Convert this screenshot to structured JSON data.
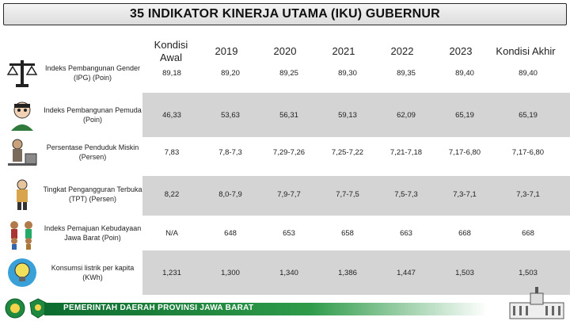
{
  "title": "35 INDIKATOR KINERJA UTAMA (IKU) GUBERNUR",
  "columns": [
    "Kondisi Awal",
    "2019",
    "2020",
    "2021",
    "2022",
    "2023",
    "Kondisi Akhir"
  ],
  "rows": [
    {
      "label": "Indeks Pembangunan Gender (IPG) (Poin)",
      "icon": "justice-scale-icon",
      "values": [
        "89,18",
        "89,20",
        "89,25",
        "89,30",
        "89,35",
        "89,40",
        "89,40"
      ]
    },
    {
      "label": "Indeks Pembangunan Pemuda (Poin)",
      "icon": "youth-person-icon",
      "values": [
        "46,33",
        "53,63",
        "56,31",
        "59,13",
        "62,09",
        "65,19",
        "65,19"
      ]
    },
    {
      "label": "Persentase Penduduk Miskin (Persen)",
      "icon": "poverty-icon",
      "values": [
        "7,83",
        "7,8-7,3",
        "7,29-7,26",
        "7,25-7,22",
        "7,21-7,18",
        "7,17-6,80",
        "7,17-6,80"
      ]
    },
    {
      "label": "Tingkat Pengangguran Terbuka (TPT) (Persen)",
      "icon": "unemployment-icon",
      "values": [
        "8,22",
        "8,0-7,9",
        "7,9-7,7",
        "7,7-7,5",
        "7,5-7,3",
        "7,3-7,1",
        "7,3-7,1"
      ]
    },
    {
      "label": "Indeks Pemajuan Kebudayaan Jawa Barat (Poin)",
      "icon": "culture-people-icon",
      "values": [
        "N/A",
        "648",
        "653",
        "658",
        "663",
        "668",
        "668"
      ]
    },
    {
      "label": "Konsumsi listrik per kapita (KWh)",
      "icon": "lightbulb-icon",
      "values": [
        "1,231",
        "1,300",
        "1,340",
        "1,386",
        "1,447",
        "1,503",
        "1,503"
      ]
    }
  ],
  "footer": {
    "text": "PEMERINTAH DAERAH PROVINSI JAWA BARAT"
  },
  "colors": {
    "shade": "#d4d4d4",
    "footer_green": "#0c6b2f"
  }
}
